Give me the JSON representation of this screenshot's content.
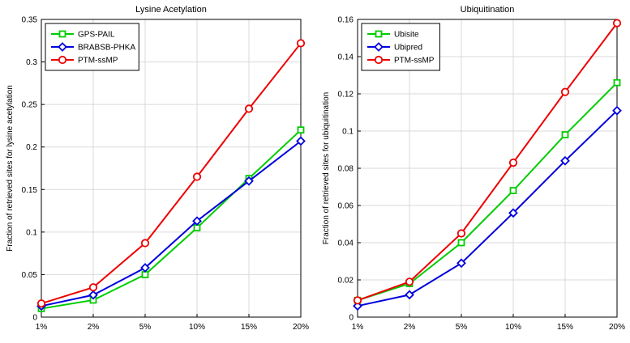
{
  "figure": {
    "background": "#ffffff",
    "grid_color": "#d9d9d9",
    "axis_color": "#000000",
    "text_color": "#000000"
  },
  "chart_data": [
    {
      "type": "line",
      "title": "Lysine Acetylation",
      "xlabel": "",
      "ylabel": "Fraction of retrieved sites for lysine acetylation",
      "categories": [
        "1%",
        "2%",
        "5%",
        "10%",
        "15%",
        "20%"
      ],
      "ylim": [
        0,
        0.35
      ],
      "ytick_step": 0.05,
      "grid": true,
      "legend_position": "top-left",
      "series": [
        {
          "name": "GPS-PAIL",
          "color": "#00cc00",
          "marker": "square",
          "values": [
            0.01,
            0.02,
            0.05,
            0.105,
            0.163,
            0.22
          ]
        },
        {
          "name": "BRABSB-PHKA",
          "color": "#0000dd",
          "marker": "diamond",
          "values": [
            0.013,
            0.026,
            0.058,
            0.113,
            0.16,
            0.207
          ]
        },
        {
          "name": "PTM-ssMP",
          "color": "#ee0000",
          "marker": "circle",
          "values": [
            0.016,
            0.035,
            0.087,
            0.165,
            0.245,
            0.322
          ]
        }
      ]
    },
    {
      "type": "line",
      "title": "Ubiquitination",
      "xlabel": "",
      "ylabel": "Fraction of retrieved sites for ubiquitination",
      "categories": [
        "1%",
        "2%",
        "5%",
        "10%",
        "15%",
        "20%"
      ],
      "ylim": [
        0,
        0.16
      ],
      "ytick_step": 0.02,
      "grid": true,
      "legend_position": "top-left",
      "series": [
        {
          "name": "Ubisite",
          "color": "#00cc00",
          "marker": "square",
          "values": [
            0.009,
            0.018,
            0.04,
            0.068,
            0.098,
            0.126
          ]
        },
        {
          "name": "Ubipred",
          "color": "#0000dd",
          "marker": "diamond",
          "values": [
            0.006,
            0.012,
            0.029,
            0.056,
            0.084,
            0.111
          ]
        },
        {
          "name": "PTM-ssMP",
          "color": "#ee0000",
          "marker": "circle",
          "values": [
            0.009,
            0.019,
            0.045,
            0.083,
            0.121,
            0.158
          ]
        }
      ]
    }
  ]
}
